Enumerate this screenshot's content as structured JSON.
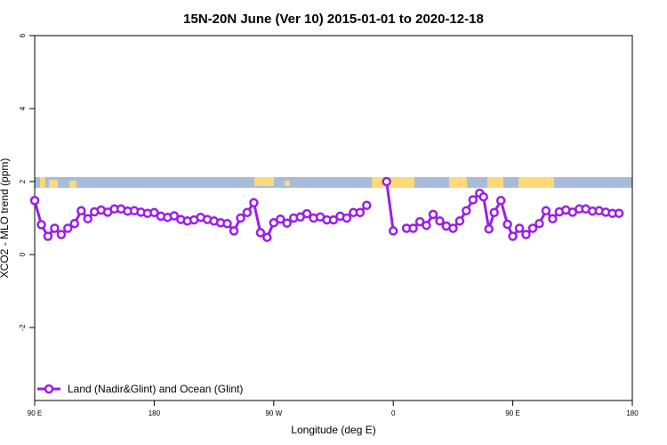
{
  "chart_data": {
    "type": "line",
    "title": "15N-20N June (Ver 10)   2015-01-01 to 2020-12-18",
    "xlabel": "Longitude (deg E)",
    "ylabel": "XCO2 - MLO trend (ppm)",
    "x_tick_labels": [
      "90 E",
      "180",
      "90 W",
      "0",
      "90 E",
      "180"
    ],
    "y_tick_labels": [
      "-2",
      "0",
      "2",
      "4",
      "6"
    ],
    "ylim": [
      -4,
      6
    ],
    "grid": false,
    "legend_position": "bottom-left",
    "colors": {
      "series": "#9b1fe8",
      "ocean_band": "#a6bcd8",
      "land_band": "#ffd877"
    },
    "series": [
      {
        "name": "Land (Nadir&Glint) and Ocean (Glint)",
        "points": [
          [
            90,
            1.48
          ],
          [
            95,
            0.82
          ],
          [
            100,
            0.5
          ],
          [
            105,
            0.72
          ],
          [
            110,
            0.55
          ],
          [
            115,
            0.72
          ],
          [
            120,
            0.85
          ],
          [
            125,
            1.2
          ],
          [
            130,
            0.98
          ],
          [
            135,
            1.17
          ],
          [
            140,
            1.22
          ],
          [
            145,
            1.16
          ],
          [
            150,
            1.25
          ],
          [
            155,
            1.25
          ],
          [
            160,
            1.19
          ],
          [
            165,
            1.2
          ],
          [
            170,
            1.16
          ],
          [
            175,
            1.13
          ],
          [
            180,
            1.15
          ],
          [
            185,
            1.05
          ],
          [
            190,
            1.02
          ],
          [
            195,
            1.06
          ],
          [
            200,
            0.96
          ],
          [
            205,
            0.92
          ],
          [
            210,
            0.95
          ],
          [
            215,
            1.02
          ],
          [
            220,
            0.96
          ],
          [
            225,
            0.92
          ],
          [
            230,
            0.87
          ],
          [
            235,
            0.85
          ],
          [
            240,
            0.65
          ],
          [
            245,
            1.0
          ],
          [
            250,
            1.15
          ],
          [
            255,
            1.42
          ],
          [
            260,
            0.6
          ],
          [
            265,
            0.47
          ],
          [
            270,
            0.87
          ],
          [
            275,
            0.97
          ],
          [
            280,
            0.86
          ],
          [
            285,
            1.0
          ],
          [
            290,
            1.03
          ],
          [
            295,
            1.12
          ],
          [
            300,
            1.0
          ],
          [
            305,
            1.03
          ],
          [
            310,
            0.95
          ],
          [
            315,
            0.95
          ],
          [
            320,
            1.05
          ],
          [
            325,
            1.0
          ],
          [
            330,
            1.15
          ],
          [
            335,
            1.15
          ],
          [
            340,
            1.35
          ],
          [
            355,
            2.0
          ],
          [
            360,
            0.65
          ],
          [
            370,
            0.72
          ],
          [
            375,
            0.72
          ],
          [
            380,
            0.9
          ],
          [
            385,
            0.8
          ],
          [
            390,
            1.1
          ],
          [
            395,
            0.92
          ],
          [
            400,
            0.78
          ],
          [
            405,
            0.72
          ],
          [
            410,
            0.92
          ],
          [
            415,
            1.2
          ],
          [
            420,
            1.5
          ],
          [
            425,
            1.68
          ],
          [
            428,
            1.58
          ],
          [
            432,
            0.7
          ],
          [
            436,
            1.15
          ],
          [
            441,
            1.48
          ],
          [
            446,
            0.83
          ],
          [
            450,
            0.5
          ],
          [
            455,
            0.72
          ],
          [
            460,
            0.55
          ],
          [
            465,
            0.72
          ],
          [
            470,
            0.85
          ],
          [
            475,
            1.2
          ],
          [
            480,
            0.98
          ],
          [
            485,
            1.17
          ],
          [
            490,
            1.22
          ],
          [
            495,
            1.16
          ],
          [
            500,
            1.25
          ],
          [
            505,
            1.25
          ],
          [
            510,
            1.19
          ],
          [
            515,
            1.2
          ],
          [
            520,
            1.16
          ],
          [
            525,
            1.13
          ],
          [
            530,
            1.13
          ]
        ]
      }
    ]
  }
}
